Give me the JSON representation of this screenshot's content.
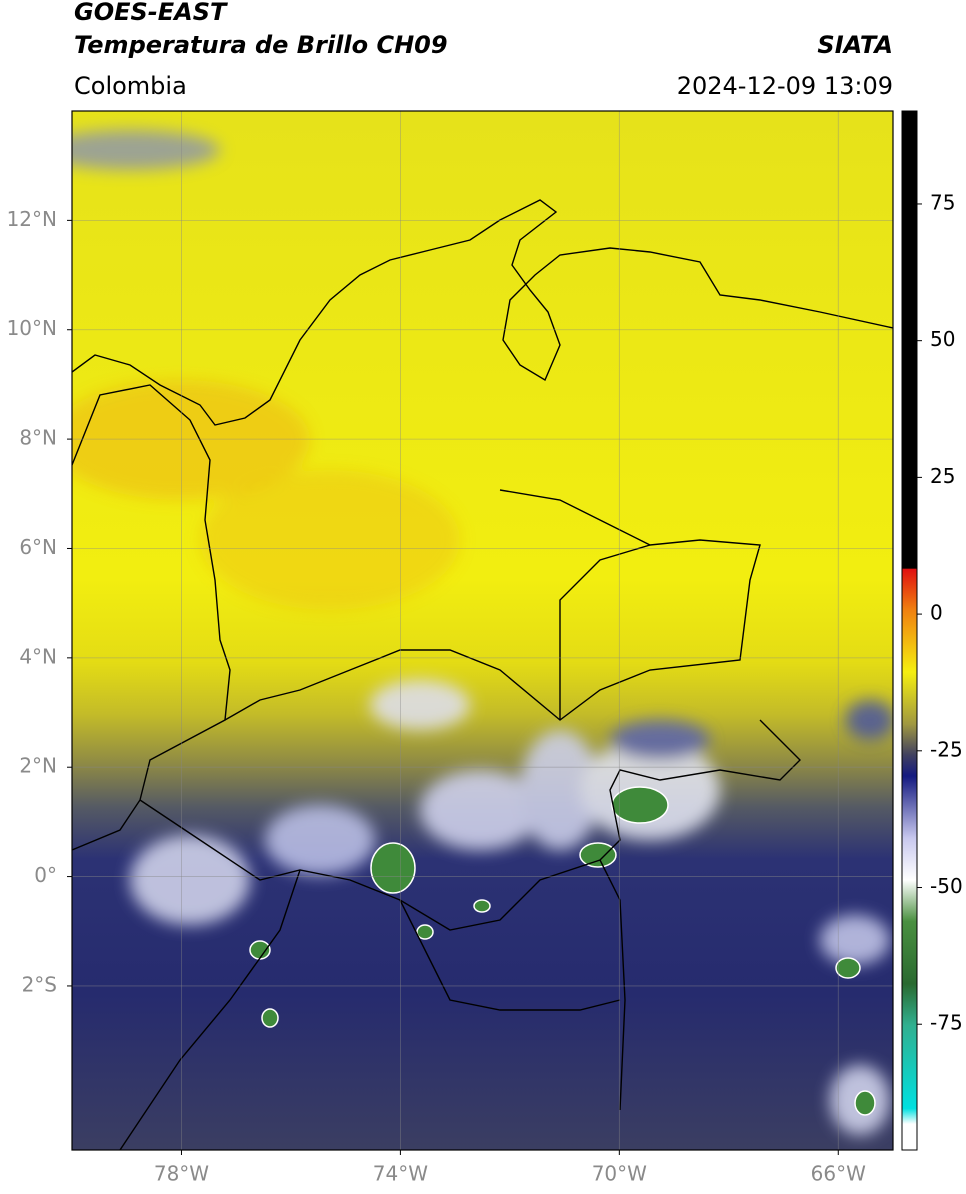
{
  "header": {
    "title": "GOES-EAST",
    "subtitle": "Temperatura de Brillo CH09",
    "region": "Colombia",
    "source": "SIATA",
    "timestamp": "2024-12-09 13:09"
  },
  "map": {
    "lon_range": [
      -80,
      -65
    ],
    "lat_range": [
      -5,
      14
    ],
    "grid": true,
    "lon_ticks": [
      {
        "value": -78,
        "label": "78°W"
      },
      {
        "value": -74,
        "label": "74°W"
      },
      {
        "value": -70,
        "label": "70°W"
      },
      {
        "value": -66,
        "label": "66°W"
      }
    ],
    "lat_ticks": [
      {
        "value": 12,
        "label": "12°N"
      },
      {
        "value": 10,
        "label": "10°N"
      },
      {
        "value": 8,
        "label": "8°N"
      },
      {
        "value": 6,
        "label": "6°N"
      },
      {
        "value": 4,
        "label": "4°N"
      },
      {
        "value": 2,
        "label": "2°N"
      },
      {
        "value": 0,
        "label": "0°"
      },
      {
        "value": -2,
        "label": "2°S"
      }
    ]
  },
  "colorbar": {
    "range": [
      -98,
      92
    ],
    "ticks": [
      75,
      50,
      25,
      0,
      -25,
      -50,
      -75
    ]
  }
}
